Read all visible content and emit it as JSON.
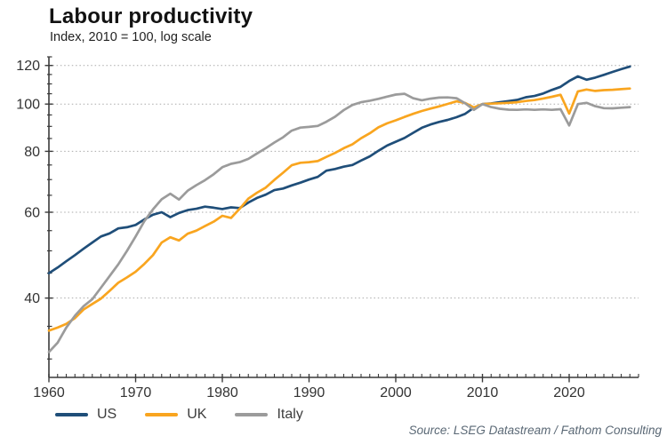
{
  "header": {
    "title": "Labour productivity",
    "subtitle": "Index, 2010 = 100, log scale"
  },
  "source": "Source: LSEG Datastream / Fathom Consulting",
  "colors": {
    "us": "#1f4e79",
    "uk": "#f9a51f",
    "italy": "#9b9b9b",
    "grid": "#aaaaaa",
    "axis": "#3a3a3a",
    "tick_label": "#333333"
  },
  "chart_data": {
    "type": "line",
    "title": "Labour productivity",
    "subtitle": "Index, 2010 = 100, log scale",
    "y_scale": "log",
    "xlim": [
      1960,
      2028
    ],
    "ylim": [
      27.5,
      125
    ],
    "y_ticks_major": [
      40,
      60,
      80,
      100,
      120
    ],
    "y_ticks_minor": [
      30,
      35,
      45,
      50,
      55,
      65,
      70,
      75,
      85,
      90,
      95,
      105,
      110,
      115,
      125
    ],
    "x_ticks_labeled": [
      1960,
      1970,
      1980,
      1990,
      2000,
      2010,
      2020
    ],
    "grid": "horizontal-dotted",
    "legend_position": "bottom-left",
    "x": [
      1960,
      1961,
      1962,
      1963,
      1964,
      1965,
      1966,
      1967,
      1968,
      1969,
      1970,
      1971,
      1972,
      1973,
      1974,
      1975,
      1976,
      1977,
      1978,
      1979,
      1980,
      1981,
      1982,
      1983,
      1984,
      1985,
      1986,
      1987,
      1988,
      1989,
      1990,
      1991,
      1992,
      1993,
      1994,
      1995,
      1996,
      1997,
      1998,
      1999,
      2000,
      2001,
      2002,
      2003,
      2004,
      2005,
      2006,
      2007,
      2008,
      2009,
      2010,
      2011,
      2012,
      2013,
      2014,
      2015,
      2016,
      2017,
      2018,
      2019,
      2020,
      2021,
      2022,
      2023,
      2024,
      2025,
      2026,
      2027
    ],
    "series": [
      {
        "name": "US",
        "color": "#1f4e79",
        "values": [
          45.0,
          46.2,
          47.6,
          49.0,
          50.5,
          52.0,
          53.5,
          54.3,
          55.6,
          55.9,
          56.5,
          58.0,
          59.3,
          60.0,
          58.6,
          59.8,
          60.6,
          61.0,
          61.6,
          61.3,
          60.9,
          61.4,
          61.2,
          62.8,
          64.2,
          65.2,
          66.6,
          67.1,
          68.1,
          69.0,
          70.0,
          70.9,
          73.0,
          73.6,
          74.4,
          75.0,
          76.6,
          78.1,
          80.2,
          82.2,
          83.7,
          85.2,
          87.3,
          89.4,
          90.8,
          91.9,
          92.8,
          94.0,
          95.5,
          98.3,
          100.0,
          100.3,
          100.9,
          101.4,
          102.0,
          103.3,
          103.9,
          105.1,
          106.9,
          108.5,
          111.5,
          114.0,
          112.2,
          113.3,
          114.8,
          116.4,
          117.9,
          119.4
        ]
      },
      {
        "name": "UK",
        "color": "#f9a51f",
        "values": [
          34.3,
          34.8,
          35.4,
          36.4,
          37.9,
          38.9,
          39.9,
          41.4,
          43.0,
          44.1,
          45.3,
          47.0,
          49.0,
          52.0,
          53.3,
          52.5,
          54.2,
          55.0,
          56.2,
          57.4,
          59.0,
          58.4,
          61.0,
          64.0,
          65.8,
          67.4,
          69.9,
          72.3,
          74.9,
          75.8,
          76.0,
          76.4,
          77.9,
          79.4,
          81.2,
          82.7,
          85.1,
          87.1,
          89.6,
          91.3,
          92.6,
          94.1,
          95.5,
          96.8,
          97.9,
          98.9,
          100.1,
          101.3,
          100.5,
          98.4,
          100.0,
          100.2,
          100.4,
          100.6,
          100.9,
          101.5,
          101.9,
          102.7,
          103.5,
          104.5,
          95.6,
          106.2,
          107.1,
          106.4,
          106.8,
          107.0,
          107.3,
          107.6
        ]
      },
      {
        "name": "Italy",
        "color": "#9b9b9b",
        "values": [
          31.0,
          32.4,
          34.8,
          36.8,
          38.5,
          39.8,
          42.0,
          44.4,
          46.9,
          50.0,
          53.5,
          57.5,
          60.8,
          63.8,
          65.5,
          63.7,
          66.4,
          68.2,
          69.8,
          71.8,
          74.2,
          75.4,
          76.0,
          77.2,
          79.2,
          81.2,
          83.4,
          85.5,
          88.2,
          89.5,
          89.8,
          90.2,
          92.0,
          94.2,
          97.2,
          99.6,
          100.9,
          101.6,
          102.5,
          103.6,
          104.6,
          105.0,
          102.8,
          101.8,
          102.6,
          103.1,
          103.2,
          102.8,
          100.4,
          97.3,
          100.0,
          98.6,
          97.8,
          97.4,
          97.3,
          97.5,
          97.3,
          97.5,
          97.3,
          97.6,
          90.4,
          100.0,
          100.6,
          99.0,
          98.1,
          98.0,
          98.3,
          98.6
        ]
      }
    ]
  }
}
